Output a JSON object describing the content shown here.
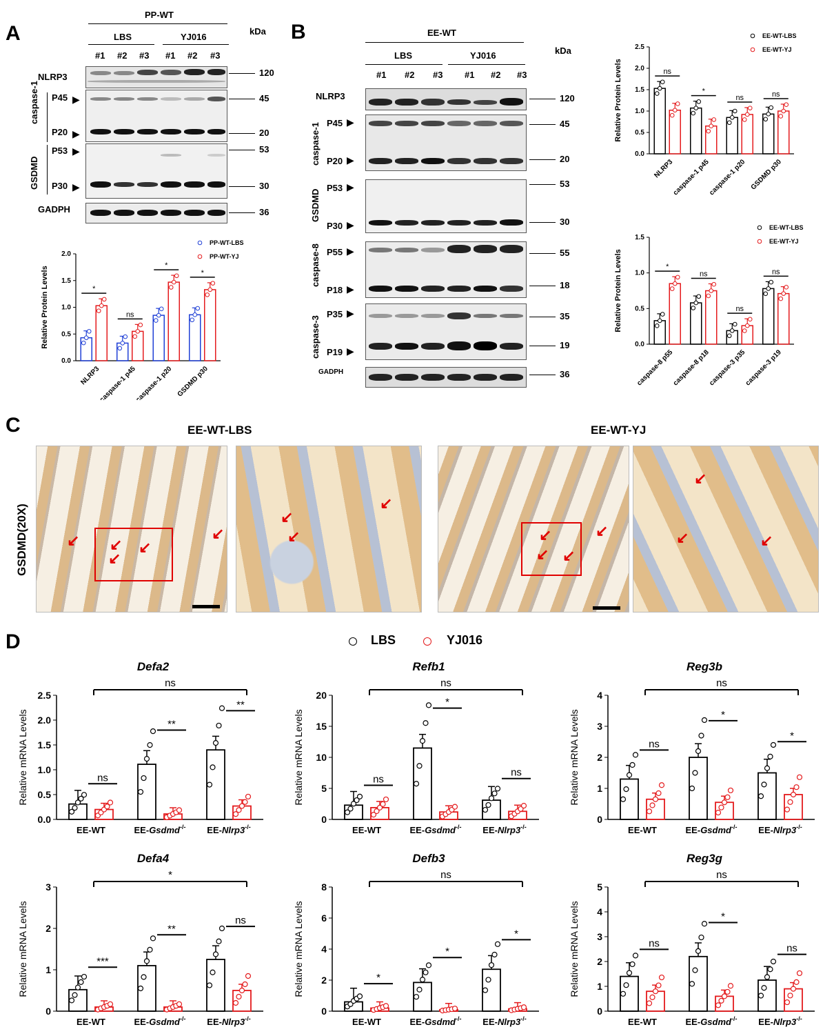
{
  "panels": {
    "A": "A",
    "B": "B",
    "C": "C",
    "D": "D"
  },
  "kda": "kDa",
  "blotA": {
    "group": "PP-WT",
    "conditions": [
      "LBS",
      "YJ016"
    ],
    "lanes": [
      "#1",
      "#2",
      "#3",
      "#1",
      "#2",
      "#3"
    ],
    "rows": [
      "NLRP3",
      "caspase-1",
      "P45",
      "P20",
      "GSDMD",
      "P53",
      "P30",
      "GADPH"
    ],
    "kdas": [
      "120",
      "45",
      "20",
      "53",
      "30",
      "36"
    ]
  },
  "blotB": {
    "group": "EE-WT",
    "conditions": [
      "LBS",
      "YJ016"
    ],
    "lanes": [
      "#1",
      "#2",
      "#3",
      "#1",
      "#2",
      "#3"
    ],
    "rows": [
      "NLRP3",
      "caspase-1",
      "P45",
      "P20",
      "GSDMD",
      "P53",
      "P30",
      "caspase-8",
      "P55",
      "P18",
      "caspase-3",
      "P35",
      "P19",
      "GADPH"
    ],
    "kdas": [
      "120",
      "45",
      "20",
      "53",
      "30",
      "55",
      "18",
      "35",
      "19",
      "36"
    ]
  },
  "panelC": {
    "titles": [
      "EE-WT-LBS",
      "EE-WT-YJ"
    ],
    "ylabel": "GSDMD(20X)"
  },
  "legendD": {
    "lbs": "LBS",
    "yj": "YJ016"
  },
  "colors": {
    "black": "#000000",
    "red": "#e41a1c",
    "blue": "#1f3fd6",
    "arrow": "#e00000",
    "tissueBg": "#f3e8d8",
    "villus": "#e2bf8f",
    "nuclei": "#6f86b0"
  },
  "chart_data": [
    {
      "id": "A-quant",
      "type": "bar",
      "ylabel": "Relative Protein Levels",
      "ylim": [
        0,
        2.0
      ],
      "yticks": [
        "0.0",
        "0.5",
        "1.0",
        "1.5",
        "2.0"
      ],
      "categories": [
        "NLRP3",
        "caspase-1 p45",
        "caspase-1 p20",
        "GSDMD p30"
      ],
      "series": [
        {
          "name": "PP-WT-LBS",
          "values": [
            0.43,
            0.33,
            0.85,
            0.86
          ]
        },
        {
          "name": "PP-WT-YJ",
          "values": [
            1.03,
            0.55,
            1.47,
            1.33
          ]
        }
      ],
      "sig": [
        "*",
        "ns",
        "*",
        "*"
      ]
    },
    {
      "id": "B-quant1",
      "type": "bar",
      "ylabel": "Relative Protein Levels",
      "ylim": [
        0,
        2.5
      ],
      "yticks": [
        "0.0",
        "0.5",
        "1.0",
        "1.5",
        "2.0",
        "2.5"
      ],
      "categories": [
        "NLRP3",
        "caspase-1 p45",
        "caspase-1 p20",
        "GSDMD p30"
      ],
      "series": [
        {
          "name": "EE-WT-LBS",
          "values": [
            1.53,
            1.07,
            0.85,
            0.93
          ]
        },
        {
          "name": "EE-WT-YJ",
          "values": [
            1.02,
            0.65,
            0.92,
            1.0
          ]
        }
      ],
      "sig": [
        "ns",
        "*",
        "ns",
        "ns"
      ]
    },
    {
      "id": "B-quant2",
      "type": "bar",
      "ylabel": "Relative Protein Levels",
      "ylim": [
        0,
        1.5
      ],
      "yticks": [
        "0.0",
        "0.5",
        "1.0",
        "1.5"
      ],
      "categories": [
        "caspase-8 p55",
        "caspase-8 p18",
        "caspase-3 p35",
        "caspase-3 p19"
      ],
      "series": [
        {
          "name": "EE-WT-LBS",
          "values": [
            0.33,
            0.58,
            0.19,
            0.78
          ]
        },
        {
          "name": "EE-WT-YJ",
          "values": [
            0.85,
            0.75,
            0.26,
            0.71
          ]
        }
      ],
      "sig": [
        "*",
        "ns",
        "ns",
        "ns"
      ]
    },
    {
      "id": "Defa2",
      "type": "bar",
      "title": "Defa2",
      "ylabel": "Relative mRNA Levels",
      "ylim": [
        0,
        2.5
      ],
      "yticks": [
        "0.0",
        "0.5",
        "1.0",
        "1.5",
        "2.0",
        "2.5"
      ],
      "categories": [
        "EE-WT",
        "EE-Gsdmd-/-",
        "EE-Nlrp3-/-"
      ],
      "series": [
        {
          "name": "LBS",
          "values": [
            0.31,
            1.11,
            1.4
          ]
        },
        {
          "name": "YJ016",
          "values": [
            0.2,
            0.11,
            0.27
          ]
        }
      ],
      "sig": [
        "ns",
        "**",
        "**"
      ],
      "top": "ns"
    },
    {
      "id": "Refb1",
      "type": "bar",
      "title": "Refb1",
      "ylabel": "Relative mRNA Levels",
      "ylim": [
        0,
        20
      ],
      "yticks": [
        "0",
        "5",
        "10",
        "15",
        "20"
      ],
      "categories": [
        "EE-WT",
        "EE-Gsdmd-/-",
        "EE-Nlrp3-/-"
      ],
      "series": [
        {
          "name": "LBS",
          "values": [
            2.3,
            11.5,
            3.1
          ]
        },
        {
          "name": "YJ016",
          "values": [
            1.9,
            1.2,
            1.3
          ]
        }
      ],
      "sig": [
        "ns",
        "*",
        "ns"
      ],
      "top": "ns"
    },
    {
      "id": "Reg3b",
      "type": "bar",
      "title": "Reg3b",
      "ylabel": "Relative mRNA Levels",
      "ylim": [
        0,
        4
      ],
      "yticks": [
        "0",
        "1",
        "2",
        "3",
        "4"
      ],
      "categories": [
        "EE-WT",
        "EE-Gsdmd-/-",
        "EE-Nlrp3-/-"
      ],
      "series": [
        {
          "name": "LBS",
          "values": [
            1.3,
            2.0,
            1.5
          ]
        },
        {
          "name": "YJ016",
          "values": [
            0.65,
            0.55,
            0.8
          ]
        }
      ],
      "sig": [
        "ns",
        "*",
        "*"
      ],
      "top": "ns"
    },
    {
      "id": "Defa4",
      "type": "bar",
      "title": "Defa4",
      "ylabel": "Relative mRNA Levels",
      "ylim": [
        0,
        3
      ],
      "yticks": [
        "0",
        "1",
        "2",
        "3"
      ],
      "categories": [
        "EE-WT",
        "EE-Gsdmd-/-",
        "EE-Nlrp3-/-"
      ],
      "series": [
        {
          "name": "LBS",
          "values": [
            0.52,
            1.1,
            1.25
          ]
        },
        {
          "name": "YJ016",
          "values": [
            0.1,
            0.1,
            0.5
          ]
        }
      ],
      "sig": [
        "***",
        "**",
        "ns"
      ],
      "top": "*"
    },
    {
      "id": "Defb3",
      "type": "bar",
      "title": "Defb3",
      "ylabel": "Relative mRNA Levels",
      "ylim": [
        0,
        8
      ],
      "yticks": [
        "0",
        "2",
        "4",
        "6",
        "8"
      ],
      "categories": [
        "EE-WT",
        "EE-Gsdmd-/-",
        "EE-Nlrp3-/-"
      ],
      "series": [
        {
          "name": "LBS",
          "values": [
            0.6,
            1.85,
            2.7
          ]
        },
        {
          "name": "YJ016",
          "values": [
            0.2,
            0.1,
            0.15
          ]
        }
      ],
      "sig": [
        "*",
        "*",
        "*"
      ],
      "top": "ns"
    },
    {
      "id": "Reg3g",
      "type": "bar",
      "title": "Reg3g",
      "ylabel": "Relative mRNA Levels",
      "ylim": [
        0,
        5
      ],
      "yticks": [
        "0",
        "1",
        "2",
        "3",
        "4",
        "5"
      ],
      "categories": [
        "EE-WT",
        "EE-Gsdmd-/-",
        "EE-Nlrp3-/-"
      ],
      "series": [
        {
          "name": "LBS",
          "values": [
            1.4,
            2.2,
            1.25
          ]
        },
        {
          "name": "YJ016",
          "values": [
            0.8,
            0.6,
            0.9
          ]
        }
      ],
      "sig": [
        "ns",
        "*",
        "ns"
      ],
      "top": "ns"
    }
  ]
}
